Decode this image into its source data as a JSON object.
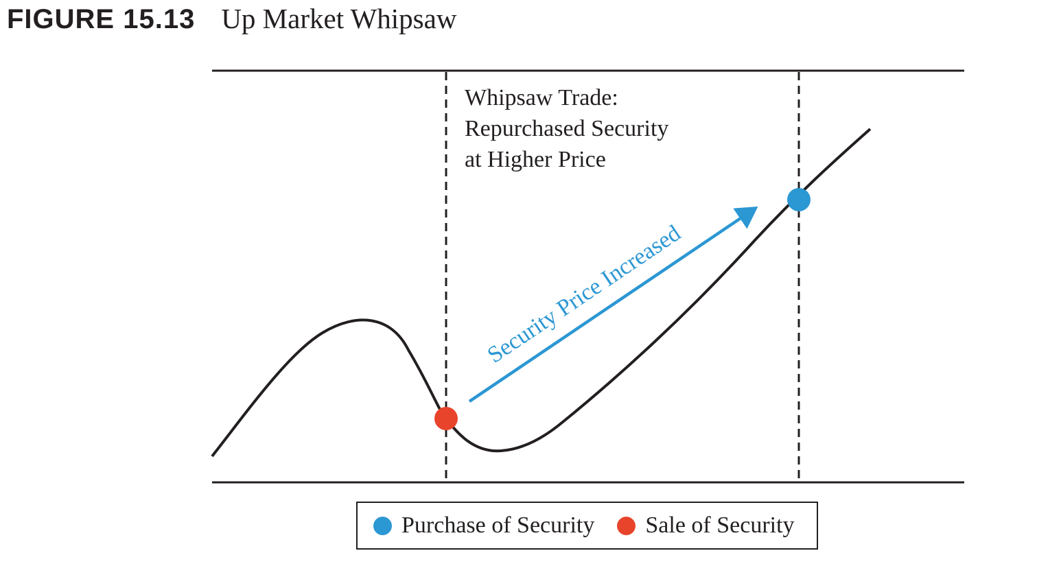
{
  "figure": {
    "number": "FIGURE 15.13",
    "title": "Up Market Whipsaw"
  },
  "annotation": {
    "lines": [
      "Whipsaw Trade:",
      "Repurchased Security",
      "at Higher Price"
    ]
  },
  "trend_arrow": {
    "label": "Security Price Increased"
  },
  "legend": {
    "purchase": {
      "label": "Purchase of Security",
      "color": "#2b97d3"
    },
    "sale": {
      "label": "Sale of Security",
      "color": "#e8442b"
    }
  },
  "colors": {
    "line": "#231f20",
    "arrow": "#2b97d3"
  }
}
